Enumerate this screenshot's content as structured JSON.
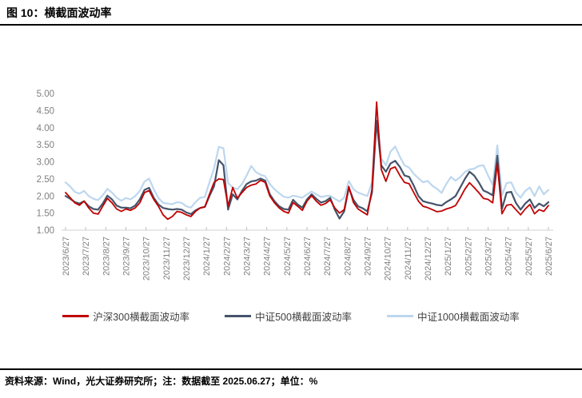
{
  "title": "图 10：横截面波动率",
  "footer": {
    "source_note": "资料来源：Wind，光大证券研究所；注：数据截至 2025.06.27；单位：%"
  },
  "chart_data": {
    "type": "line",
    "title": "横截面波动率",
    "unit": "%",
    "grid": false,
    "legend_position": "bottom",
    "ylim": [
      1.0,
      5.0
    ],
    "y_ticks": [
      "5.00",
      "4.50",
      "4.00",
      "3.50",
      "3.00",
      "2.50",
      "2.00",
      "1.50",
      "1.00"
    ],
    "categories": [
      "2023/6/27",
      "2023/7/27",
      "2023/8/27",
      "2023/9/27",
      "2023/10/27",
      "2023/11/27",
      "2023/12/27",
      "2024/1/27",
      "2024/2/27",
      "2024/3/27",
      "2024/4/27",
      "2024/5/27",
      "2024/6/27",
      "2024/7/27",
      "2024/8/27",
      "2024/9/27",
      "2024/10/27",
      "2024/11/27",
      "2024/12/27",
      "2025/1/27",
      "2025/2/27",
      "2025/3/27",
      "2025/4/27",
      "2025/5/27",
      "2025/6/27"
    ],
    "x_range": [
      "2023/6/27",
      "2025/6/27"
    ],
    "sampling": "weekly, 105 points per series, values estimated from plot",
    "series": [
      {
        "name": "沪深300横截面波动率",
        "color": "#C00000",
        "line_width": 1.8,
        "values": [
          2.1,
          1.95,
          1.8,
          1.73,
          1.85,
          1.65,
          1.5,
          1.47,
          1.7,
          1.93,
          1.8,
          1.62,
          1.55,
          1.62,
          1.58,
          1.65,
          1.8,
          2.1,
          2.16,
          1.9,
          1.7,
          1.45,
          1.32,
          1.4,
          1.55,
          1.52,
          1.45,
          1.4,
          1.55,
          1.65,
          1.68,
          2.05,
          2.4,
          2.5,
          2.48,
          1.7,
          2.25,
          1.94,
          2.1,
          2.25,
          2.32,
          2.35,
          2.46,
          2.4,
          2.0,
          1.8,
          1.65,
          1.55,
          1.5,
          1.81,
          1.7,
          1.58,
          1.85,
          2.01,
          1.85,
          1.73,
          1.78,
          1.89,
          1.65,
          1.5,
          1.6,
          2.28,
          1.81,
          1.62,
          1.53,
          1.45,
          2.2,
          4.75,
          2.78,
          2.43,
          2.8,
          2.85,
          2.6,
          2.4,
          2.36,
          2.1,
          1.85,
          1.7,
          1.66,
          1.6,
          1.54,
          1.56,
          1.62,
          1.66,
          1.72,
          1.95,
          2.2,
          2.39,
          2.25,
          2.1,
          1.93,
          1.9,
          1.8,
          2.95,
          1.48,
          1.73,
          1.75,
          1.6,
          1.45,
          1.62,
          1.75,
          1.48,
          1.6,
          1.55,
          1.72
        ]
      },
      {
        "name": "中证500横截面波动率",
        "color": "#44546A",
        "line_width": 2.2,
        "values": [
          2.0,
          1.92,
          1.82,
          1.78,
          1.85,
          1.7,
          1.62,
          1.6,
          1.78,
          2.01,
          1.9,
          1.72,
          1.66,
          1.66,
          1.64,
          1.72,
          1.9,
          2.18,
          2.24,
          1.95,
          1.75,
          1.65,
          1.62,
          1.6,
          1.62,
          1.6,
          1.52,
          1.47,
          1.58,
          1.65,
          1.68,
          2.0,
          2.29,
          3.05,
          2.9,
          1.6,
          2.05,
          1.9,
          2.15,
          2.35,
          2.43,
          2.45,
          2.51,
          2.45,
          2.05,
          1.85,
          1.7,
          1.62,
          1.6,
          1.89,
          1.75,
          1.66,
          1.9,
          2.05,
          1.92,
          1.81,
          1.85,
          1.95,
          1.6,
          1.34,
          1.55,
          2.24,
          1.89,
          1.7,
          1.64,
          1.55,
          2.1,
          4.2,
          2.9,
          2.71,
          2.95,
          3.03,
          2.85,
          2.6,
          2.56,
          2.3,
          2.0,
          1.85,
          1.81,
          1.78,
          1.74,
          1.72,
          1.82,
          1.9,
          2.0,
          2.25,
          2.5,
          2.71,
          2.6,
          2.4,
          2.16,
          2.1,
          2.02,
          3.18,
          1.62,
          2.1,
          2.12,
          1.8,
          1.6,
          1.78,
          1.9,
          1.65,
          1.78,
          1.7,
          1.82
        ]
      },
      {
        "name": "中证1000横截面波动率",
        "color": "#BDD7EE",
        "line_width": 2.2,
        "values": [
          2.4,
          2.28,
          2.12,
          2.07,
          2.15,
          2.0,
          1.92,
          1.88,
          2.02,
          2.21,
          2.1,
          1.95,
          1.86,
          1.94,
          1.9,
          2.0,
          2.15,
          2.42,
          2.51,
          2.2,
          1.94,
          1.8,
          1.78,
          1.76,
          1.82,
          1.8,
          1.7,
          1.66,
          1.82,
          1.95,
          1.97,
          2.4,
          2.81,
          3.44,
          3.4,
          2.38,
          2.25,
          2.2,
          2.35,
          2.6,
          2.88,
          2.7,
          2.62,
          2.58,
          2.35,
          2.2,
          2.08,
          1.98,
          1.95,
          2.01,
          1.98,
          1.95,
          2.05,
          2.13,
          2.05,
          1.97,
          2.0,
          2.01,
          1.92,
          1.84,
          1.95,
          2.44,
          2.2,
          2.1,
          2.05,
          2.0,
          2.4,
          4.35,
          3.1,
          2.9,
          3.3,
          3.45,
          3.15,
          2.9,
          2.83,
          2.65,
          2.52,
          2.4,
          2.44,
          2.3,
          2.21,
          2.09,
          2.35,
          2.56,
          2.45,
          2.55,
          2.7,
          2.78,
          2.8,
          2.88,
          2.9,
          2.6,
          2.33,
          3.48,
          2.02,
          2.38,
          2.4,
          2.1,
          1.95,
          2.15,
          2.25,
          2.0,
          2.28,
          2.05,
          2.18
        ]
      }
    ],
    "axis_colors": {
      "axis_line": "#D9D9D9",
      "tick": "#BFBFBF",
      "tick_label": "#7F7F7F"
    }
  }
}
